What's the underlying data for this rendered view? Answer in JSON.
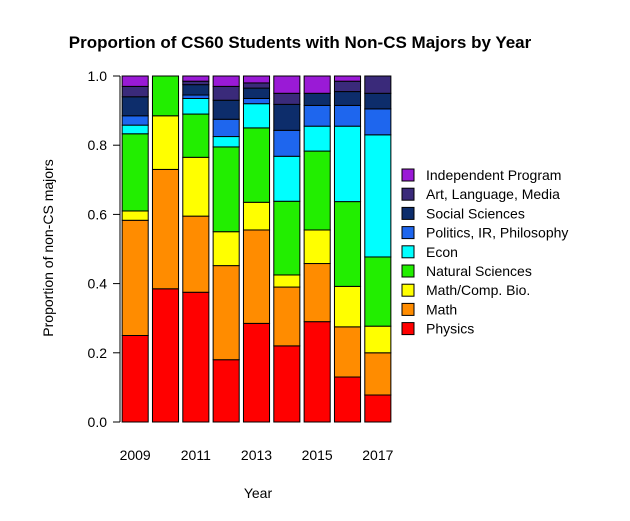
{
  "chart_data": {
    "type": "bar",
    "stacked": true,
    "title": "Proportion of CS60 Students with Non-CS Majors by Year",
    "xlabel": "Year",
    "ylabel": "Proportion of non-CS majors",
    "ylim": [
      0,
      1
    ],
    "yticks": [
      "0.0",
      "0.2",
      "0.4",
      "0.6",
      "0.8",
      "1.0"
    ],
    "categories": [
      "2009",
      "2010",
      "2011",
      "2012",
      "2013",
      "2014",
      "2015",
      "2016",
      "2017"
    ],
    "xtick_labels": [
      "2009",
      "",
      "2011",
      "",
      "2013",
      "",
      "2015",
      "",
      "2017"
    ],
    "legend_position": "right",
    "series": [
      {
        "name": "Physics",
        "color": "#ff0000",
        "values": [
          0.25,
          0.385,
          0.375,
          0.18,
          0.285,
          0.22,
          0.29,
          0.13,
          0.078
        ]
      },
      {
        "name": "Math",
        "color": "#ff8c00",
        "values": [
          0.333,
          0.345,
          0.22,
          0.272,
          0.27,
          0.17,
          0.168,
          0.145,
          0.122
        ]
      },
      {
        "name": "Math/Comp. Bio.",
        "color": "#ffff00",
        "values": [
          0.027,
          0.155,
          0.17,
          0.098,
          0.08,
          0.035,
          0.097,
          0.117,
          0.077
        ]
      },
      {
        "name": "Natural Sciences",
        "color": "#22ee00",
        "values": [
          0.223,
          0.115,
          0.125,
          0.245,
          0.215,
          0.213,
          0.228,
          0.245,
          0.2
        ]
      },
      {
        "name": "Econ",
        "color": "#00ffff",
        "values": [
          0.025,
          0.0,
          0.045,
          0.03,
          0.07,
          0.13,
          0.072,
          0.218,
          0.353
        ]
      },
      {
        "name": "Politics, IR, Philosophy",
        "color": "#1e66ee",
        "values": [
          0.027,
          0.0,
          0.01,
          0.05,
          0.015,
          0.075,
          0.06,
          0.06,
          0.075
        ]
      },
      {
        "name": "Social Sciences",
        "color": "#0d2d6b",
        "values": [
          0.055,
          0.0,
          0.03,
          0.055,
          0.03,
          0.075,
          0.035,
          0.04,
          0.045
        ]
      },
      {
        "name": "Art, Language, Media",
        "color": "#3a2a7a",
        "values": [
          0.03,
          0.0,
          0.01,
          0.04,
          0.015,
          0.032,
          0.0,
          0.03,
          0.05
        ]
      },
      {
        "name": "Independent Program",
        "color": "#9a1ad6",
        "values": [
          0.03,
          0.0,
          0.015,
          0.03,
          0.02,
          0.05,
          0.05,
          0.015,
          0.0
        ]
      }
    ]
  }
}
